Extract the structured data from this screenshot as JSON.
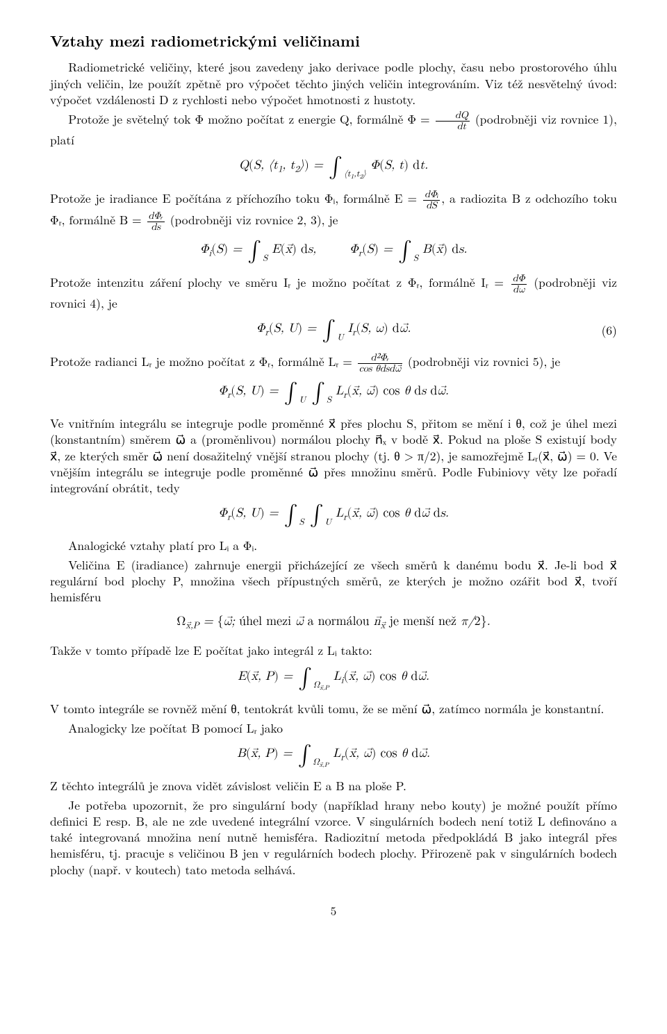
{
  "title": "Vztahy mezi radiometrickými veličinami",
  "p1": "Radiometrické veličiny, které jsou zavedeny jako derivace podle plochy, času nebo prostorového úhlu jiných veličin, lze použít zpětně pro výpočet těchto jiných veličin integrováním. Viz též nesvětelný úvod: výpočet vzdálenosti D z rychlosti nebo výpočet hmotnosti z hustoty.",
  "p2a": "Protože je světelný tok Φ možno počítat z energie Q, formálně Φ = ",
  "p2b": " (podrobněji viz rovnice 1), platí",
  "eq_Q": "Q(S, ⟨t₁, t₂⟩) = ∫⟨t₁,t₂⟩ Φ(S, t) dt.",
  "p3a": "Protože je iradiance E počítána z příchozího toku Φᵢ, formálně E = ",
  "p3b": ", a radiozita B z odchozího toku Φᵣ, formálně B = ",
  "p3c": " (podrobněji viz rovnice 2, 3), je",
  "eq_Phi_i": "Φᵢ(S) = ∫S E(x⃗) ds,        Φᵣ(S) = ∫S B(x⃗) ds.",
  "p4a": "Protože intenzitu záření plochy ve směru Iᵣ je možno počítat z Φᵣ, formálně Iᵣ = ",
  "p4b": " (podrobněji viz rovnici 4), je",
  "eq_Phir_SU": "Φᵣ(S, U) = ∫U Iᵣ(S, ω) dω⃗.",
  "eqnum6": "(6)",
  "p5a": "Protože radianci Lᵣ je možno počítat z Φᵣ, formálně Lᵣ = ",
  "p5b": " (podrobněji viz rovnici 5), je",
  "eq_Phir_SU2": "Φᵣ(S, U) = ∫U ∫S Lᵣ(x⃗, ω⃗) cos θ ds dω⃗.",
  "p6": "Ve vnitřním integrálu se integruje podle proměnné x⃗ přes plochu S, přitom se mění i θ, což je úhel mezi (konstantním) směrem ω⃗ a (proměnlivou) normálou plochy n⃗ₓ v bodě x⃗. Pokud na ploše S existují body x⃗, ze kterých směr ω⃗ není dosažitelný vnější stranou plochy (tj. θ > π/2), je samozřejmě Lᵣ(x⃗, ω⃗) = 0. Ve vnějším integrálu se integruje podle proměnné ω⃗ přes množinu směrů. Podle Fubiniovy věty lze pořadí integrování obrátit, tedy",
  "eq_Phir_SU3": "Φᵣ(S, U) = ∫S ∫U Lᵣ(x⃗, ω⃗) cos θ dω⃗ ds.",
  "p7": "Analogické vztahy platí pro Lᵢ a Φᵢ.",
  "p8": "Veličina E (iradiance) zahrnuje energii přicházející ze všech směrů k danému bodu x⃗. Je-li bod x⃗ regulární bod plochy P, množina všech přípustných směrů, ze kterých je možno ozářit bod x⃗, tvoří hemisféru",
  "eq_Omega": "Ωx⃗,P = {ω⃗; úhel mezi ω⃗ a normálou n⃗ₓ je menší než π/2}.",
  "p9": "Takže v tomto případě lze E počítat jako integrál z Lᵢ takto:",
  "eq_E": "E(x⃗, P) = ∫Ωx⃗,P Lᵢ(x⃗, ω⃗) cos θ dω⃗.",
  "p10": "V tomto integrále se rovněž mění θ, tentokrát kvůli tomu, že se mění ω⃗, zatímco normála je konstantní.",
  "p11": "Analogicky lze počítat B pomocí Lᵣ jako",
  "eq_B": "B(x⃗, P) = ∫Ωx⃗,P Lᵣ(x⃗, ω⃗) cos θ dω⃗.",
  "p12": "Z těchto integrálů je znova vidět závislost veličin E a B na ploše P.",
  "p13": "Je potřeba upozornit, že pro singulární body (například hrany nebo kouty) je možné použít přímo definici E resp. B, ale ne zde uvedené integrální vzorce. V singulárních bodech není totiž L definováno a také integrovaná množina není nutně hemisféra. Radiozitní metoda předpokládá B jako integrál přes hemisféru, tj. pracuje s veličinou B jen v regulárních bodech plochy. Přirozeně pak v singulárních bodech plochy (např. v koutech) tato metoda selhává.",
  "pagenum": "5",
  "frac_dQ_dt": {
    "num": "dQ",
    "den": "dt"
  },
  "frac_dPhii_dS": {
    "num": "dΦᵢ",
    "den": "dS"
  },
  "frac_dPhir_ds": {
    "num": "dΦᵣ",
    "den": "ds"
  },
  "frac_dPhi_dom": {
    "num": "dΦ",
    "den": "dω"
  },
  "frac_d2Phir": {
    "num": "d²Φᵣ",
    "den": "cos θdsdω⃗"
  }
}
